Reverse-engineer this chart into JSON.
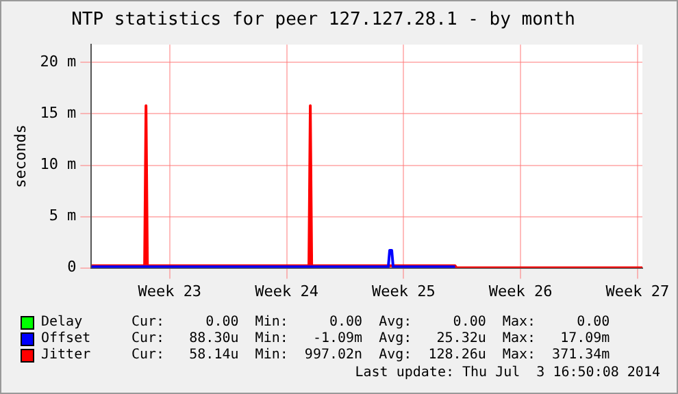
{
  "chart_data": {
    "type": "line",
    "title": "NTP statistics for peer 127.127.28.1 - by month",
    "ylabel": "seconds",
    "xlim": [
      "2014-05-28T07:30",
      "2014-06-30T07:00"
    ],
    "xticks": [
      {
        "value": "2014-06-02",
        "label": "Week 23"
      },
      {
        "value": "2014-06-09",
        "label": "Week 24"
      },
      {
        "value": "2014-06-16",
        "label": "Week 25"
      },
      {
        "value": "2014-06-23",
        "label": "Week 26"
      },
      {
        "value": "2014-06-30",
        "label": "Week 27"
      }
    ],
    "ylim": [
      0,
      21.75
    ],
    "yticks": [
      0,
      {
        "value": 5,
        "label": "5 m"
      },
      {
        "value": 10,
        "label": "10 m"
      },
      {
        "value": 15,
        "label": "15 m"
      },
      {
        "value": 20,
        "label": "20 m"
      }
    ],
    "grid": true,
    "legend": "bottom left",
    "marker": "none",
    "line_style": "solid",
    "series": [
      {
        "name": "Delay",
        "color": "#00ff00"
      },
      {
        "name": "Offset",
        "color": "#0000ff",
        "x": [
          "2014-05-28T07:30",
          "2014-06-05T12:00",
          "2014-06-12T12:00",
          "2014-06-15T02:00",
          "2014-06-15T04:00",
          "2014-06-15T07:00",
          "2014-06-15T09:00",
          "2014-06-19T02:00"
        ],
        "values": [
          0.1,
          0.1,
          0.1,
          0.1,
          1.7,
          1.7,
          0.1,
          0.1
        ]
      },
      {
        "name": "Jitter",
        "color": "#ff0000",
        "x": [
          "2014-05-28T07:30",
          "2014-05-31T12:00",
          "2014-05-31T14:00",
          "2014-05-31T16:00",
          "2014-06-10T08:00",
          "2014-06-10T10:00",
          "2014-06-10T12:00",
          "2014-06-19T02:00",
          "2014-06-19T04:00",
          "2014-06-30T07:00"
        ],
        "values": [
          0.2,
          0.2,
          15.8,
          0.2,
          0.2,
          15.8,
          0.2,
          0.2,
          0,
          0
        ]
      }
    ],
    "annotations": [
      "Cur:     0.00  Min:     0.00  Avg:     0.00  Max:     0.00",
      "Cur:   88.30u  Min:   -1.09m  Avg:   25.32u  Max:   17.09m",
      "Cur:   58.14u  Min:  997.02n  Avg:  128.26u  Max:  371.34m",
      "Last update: Thu Jul  3 16:50:08 2014"
    ]
  }
}
